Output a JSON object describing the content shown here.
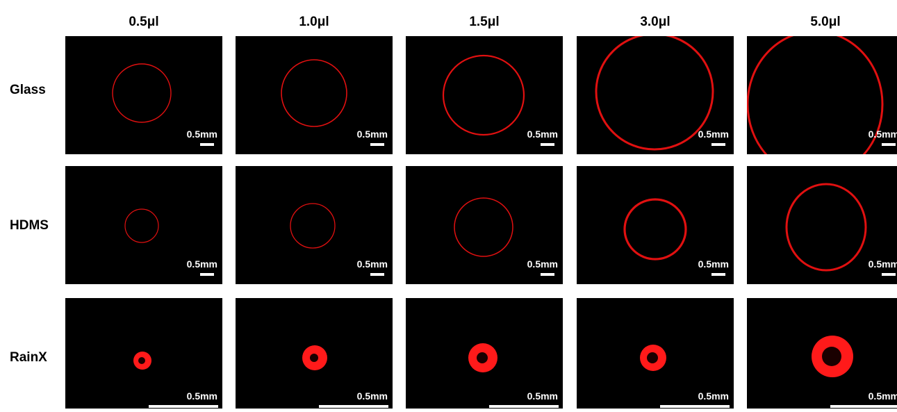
{
  "columns": [
    "0.5μl",
    "1.0μl",
    "1.5μl",
    "3.0μl",
    "5.0μl"
  ],
  "rows": [
    {
      "label": "Glass",
      "scale_bars": [
        "0.5mm",
        "0.5mm",
        "0.5mm",
        "0.5mm",
        "0.5mm"
      ]
    },
    {
      "label": "HDMS",
      "scale_bars": [
        "0.5mm",
        "0.5mm",
        "0.5mm",
        "0.5mm",
        "0.5mm"
      ]
    },
    {
      "label": "RainX",
      "scale_bars": [
        "0.5mm",
        "0.5mm",
        "0.5mm",
        "0.5mm",
        "0.5mm"
      ]
    }
  ]
}
